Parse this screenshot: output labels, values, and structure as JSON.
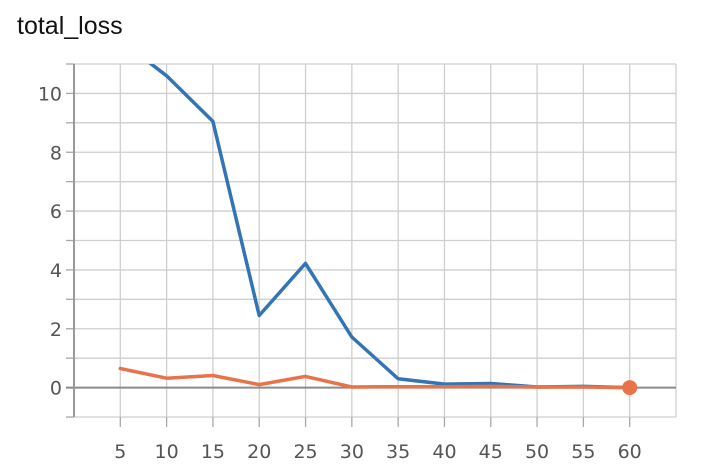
{
  "chart_data": {
    "type": "line",
    "title": "total_loss",
    "xlabel": "",
    "ylabel": "",
    "xlim": [
      0,
      65
    ],
    "ylim": [
      -1,
      11
    ],
    "x_ticks": [
      5,
      10,
      15,
      20,
      25,
      30,
      35,
      40,
      45,
      50,
      55,
      60
    ],
    "y_ticks": [
      0,
      2,
      4,
      6,
      8,
      10
    ],
    "grid": true,
    "legend": "none",
    "series": [
      {
        "color": "#3274b5",
        "x": [
          7.5,
          10,
          15,
          20,
          25,
          30,
          35,
          40,
          45,
          50,
          55,
          60
        ],
        "y": [
          11.2,
          10.6,
          9.05,
          2.45,
          4.22,
          1.72,
          0.3,
          0.12,
          0.14,
          0.02,
          0.04,
          0.0
        ]
      },
      {
        "color": "#e8734a",
        "x": [
          5,
          10,
          15,
          20,
          25,
          30,
          35,
          40,
          45,
          50,
          55,
          60
        ],
        "y": [
          0.65,
          0.32,
          0.41,
          0.1,
          0.38,
          0.02,
          0.03,
          0.03,
          0.04,
          0.02,
          0.02,
          0.0
        ],
        "end_marker": true
      }
    ]
  }
}
